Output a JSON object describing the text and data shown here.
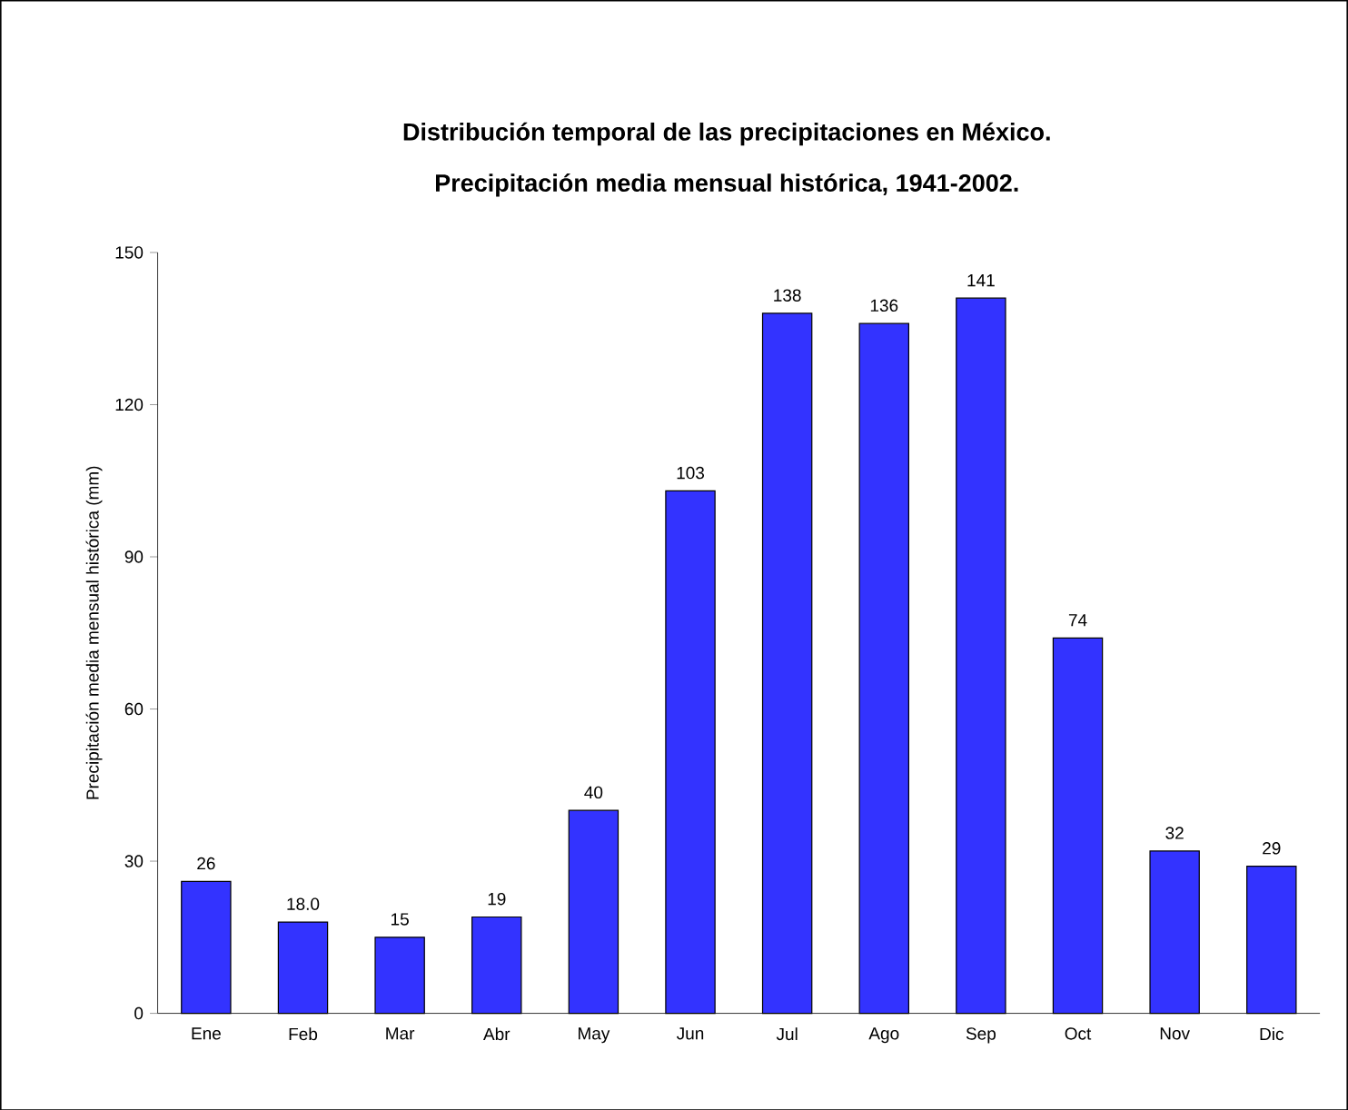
{
  "chart_data": {
    "type": "bar",
    "title": "Distribución temporal de las precipitaciones en México.",
    "subtitle": "Precipitación media mensual histórica, 1941-2002.",
    "ylabel": "Precipitación media mensual histórica  (mm)",
    "categories": [
      "Ene",
      "Feb",
      "Mar",
      "Abr",
      "May",
      "Jun",
      "Jul",
      "Ago",
      "Sep",
      "Oct",
      "Nov",
      "Dic"
    ],
    "values": [
      26,
      18.0,
      15,
      19,
      40,
      103,
      138,
      136,
      141,
      74,
      32,
      29
    ],
    "value_labels": [
      "26",
      "18.0",
      "15",
      "19",
      "40",
      "103",
      "138",
      "136",
      "141",
      "74",
      "32",
      "29"
    ],
    "color": "#3333ff",
    "ylim": [
      0,
      150
    ],
    "yticks": [
      0,
      30,
      60,
      90,
      120,
      150
    ],
    "grid": false
  }
}
